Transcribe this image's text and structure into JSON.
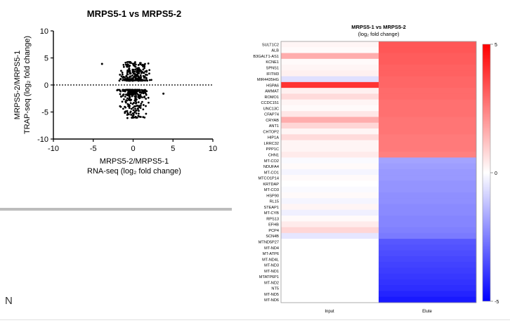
{
  "chart_data": [
    {
      "type": "scatter",
      "title": "MRPS5-1 vs MRPS5-2",
      "xlabel": "MRPS5-2/MRPS5-1",
      "xlabel_sub": "RNA-seq (log₂ fold change)",
      "ylabel": "MRPS5-2/MRPS5-1",
      "ylabel_sub": "TRAP-seq (log₂ fold change)",
      "xlim": [
        -10,
        10
      ],
      "ylim": [
        -10,
        10
      ],
      "xticks": [
        "-10",
        "-5",
        "0",
        "5",
        "10"
      ],
      "yticks": [
        "-10",
        "-5",
        "0",
        "5",
        "10"
      ],
      "zero_line": "dotted",
      "grid": false,
      "cluster_up": {
        "x_range": [
          -2.2,
          2.8
        ],
        "y_range": [
          0.8,
          4.3
        ]
      },
      "cluster_down": {
        "x_range": [
          -2.3,
          2.5
        ],
        "y_range": [
          -6.2,
          -0.9
        ]
      },
      "outliers": [
        {
          "x": -3.9,
          "y": 3.9
        },
        {
          "x": 3.8,
          "y": -1.6
        },
        {
          "x": 0.1,
          "y": -6.0
        },
        {
          "x": 1.7,
          "y": 2.6
        },
        {
          "x": -0.4,
          "y": 4.1
        }
      ]
    },
    {
      "type": "heatmap",
      "title": "MRPS5-1 vs MRPS5-2",
      "subtitle": "(log₂ fold change)",
      "columns": [
        "Input",
        "Elute"
      ],
      "rows": [
        "SULT1C2",
        "ALB",
        "B3GALT1-AS1",
        "KCNE1",
        "SPNS1",
        "IFITM3",
        "MIR4435HG",
        "HSPA6",
        "AMMAT",
        "ROMO1",
        "CCDC151",
        "UNC13C",
        "CFAP74",
        "CRYAB",
        "ANT1",
        "CHTOP2",
        "HIP1A",
        "LRRC32",
        "PPP1C",
        "CHN1",
        "MT-CO2",
        "NDUFA4",
        "MT-CO1",
        "MTCO1P14",
        "KRTDAP",
        "MT-CO3",
        "HSP90",
        "RL15",
        "STEAP1",
        "MT-CYB",
        "RPS13",
        "EFHB",
        "PCP4",
        "SCN4B",
        "MTND5P27",
        "MT-ND4",
        "MT-ATP6",
        "MT-ND4L",
        "MT-ND3",
        "MT-ND1",
        "MTATP6P1",
        "MT-ND2",
        "NT5",
        "MT-ND5",
        "MT-ND6"
      ],
      "values_input": [
        0.2,
        0.1,
        1.6,
        0.1,
        0.2,
        0.3,
        -0.6,
        4.0,
        0.3,
        0.7,
        0.2,
        0.1,
        0.5,
        1.6,
        0.8,
        0.2,
        0.7,
        0.2,
        0.2,
        0.4,
        -0.1,
        0.1,
        -0.2,
        0.1,
        0.0,
        -0.1,
        0.1,
        -0.2,
        0.2,
        -0.3,
        0.1,
        0.4,
        0.8,
        -0.5,
        0,
        0,
        0,
        0,
        0,
        0,
        0,
        0,
        0,
        0,
        0
      ],
      "values_elute": [
        3.3,
        3.3,
        3.2,
        3.2,
        3.1,
        3.1,
        3.0,
        3.0,
        2.9,
        2.9,
        2.8,
        2.8,
        2.8,
        2.7,
        2.7,
        2.7,
        2.6,
        2.6,
        2.6,
        2.5,
        -1.8,
        -1.9,
        -2.0,
        -2.0,
        -2.1,
        -2.1,
        -2.2,
        -2.2,
        -2.3,
        -2.3,
        -2.4,
        -2.4,
        -2.5,
        -2.6,
        -3.3,
        -3.4,
        -3.5,
        -3.6,
        -3.7,
        -3.8,
        -3.9,
        -4.0,
        -4.1,
        -4.3,
        -4.5
      ],
      "scale": {
        "min": -5,
        "max": 5,
        "ticks": [
          "5",
          "0",
          "-5"
        ],
        "colors": [
          "#0000ff",
          "#ffffff",
          "#ff0000"
        ]
      }
    }
  ],
  "stray_text": "N"
}
